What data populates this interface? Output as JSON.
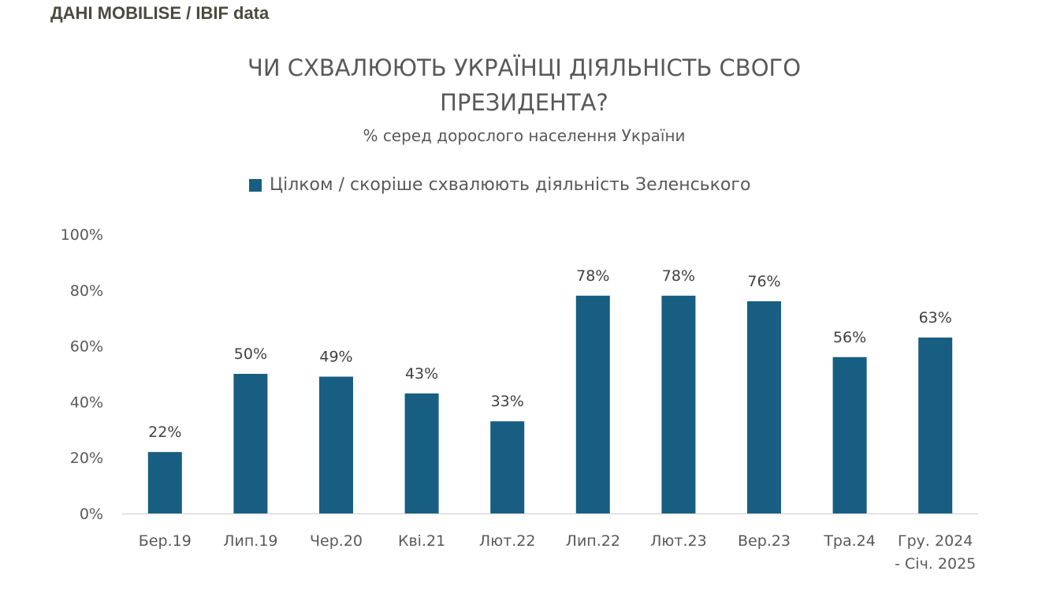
{
  "source_label": "ДАНІ MOBILISE / IBIF data",
  "chart_data": {
    "type": "bar",
    "title_lines": [
      "ЧИ СХВАЛЮЮТЬ УКРАЇНЦІ ДІЯЛЬНІСТЬ СВОГО",
      "ПРЕЗИДЕНТА?"
    ],
    "subtitle": "% серед дорослого населення України",
    "xlabel": "",
    "ylabel": "",
    "ylim": [
      0,
      100
    ],
    "y_ticks": [
      "0%",
      "20%",
      "40%",
      "60%",
      "80%",
      "100%"
    ],
    "y_tick_values": [
      0,
      20,
      40,
      60,
      80,
      100
    ],
    "grid": false,
    "legend_position": "top",
    "categories": [
      [
        "Бер.19"
      ],
      [
        "Лип.19"
      ],
      [
        "Чер.20"
      ],
      [
        "Кві.21"
      ],
      [
        "Лют.22"
      ],
      [
        "Лип.22"
      ],
      [
        "Лют.23"
      ],
      [
        "Вер.23"
      ],
      [
        "Тра.24"
      ],
      [
        "Гру. 2024",
        "- Січ. 2025"
      ]
    ],
    "series": [
      {
        "name": "Цілком / скоріше схвалюють діяльність Зеленського",
        "color": "#175e82",
        "values": [
          22,
          50,
          49,
          43,
          33,
          78,
          78,
          76,
          56,
          63
        ],
        "labels": [
          "22%",
          "50%",
          "49%",
          "43%",
          "33%",
          "78%",
          "78%",
          "76%",
          "56%",
          "63%"
        ]
      }
    ]
  }
}
